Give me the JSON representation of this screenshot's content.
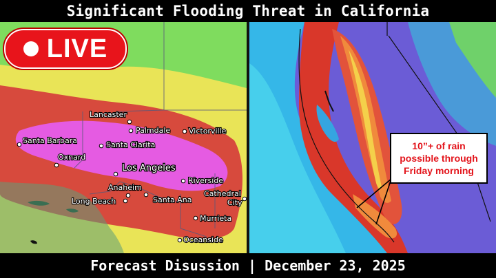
{
  "header": {
    "title": "Significant Flooding Threat in California"
  },
  "footer": {
    "text": "Forecast Disussion | December 23, 2025"
  },
  "live_badge": {
    "label": "LIVE"
  },
  "left_map": {
    "cities": [
      {
        "id": "lancaster",
        "name": "Lancaster"
      },
      {
        "id": "palmdale",
        "name": "Palmdale"
      },
      {
        "id": "victorville",
        "name": "Victorville"
      },
      {
        "id": "santa-barbara",
        "name": "Santa Barbara"
      },
      {
        "id": "santa-clarita",
        "name": "Santa Clarita"
      },
      {
        "id": "oxnard",
        "name": "Oxnard"
      },
      {
        "id": "los-angeles",
        "name": "Los Angeles"
      },
      {
        "id": "riverside",
        "name": "Riverside"
      },
      {
        "id": "anaheim",
        "name": "Anaheim"
      },
      {
        "id": "long-beach",
        "name": "Long Beach"
      },
      {
        "id": "santa-ana",
        "name": "Santa Ana"
      },
      {
        "id": "cathedral-city-line1",
        "name": "Cathedral"
      },
      {
        "id": "cathedral-city-line2",
        "name": "City"
      },
      {
        "id": "murrieta",
        "name": "Murrieta"
      },
      {
        "id": "oceanside",
        "name": "Oceanside"
      }
    ],
    "colors": {
      "marginal": "#7ee05c",
      "slight": "#e8e354",
      "moderate": "#d9473a",
      "high": "#e64ee0"
    }
  },
  "right_map": {
    "callout": {
      "line1": "10”+ of rain",
      "line2": "possible through",
      "line3": "Friday morning"
    }
  }
}
